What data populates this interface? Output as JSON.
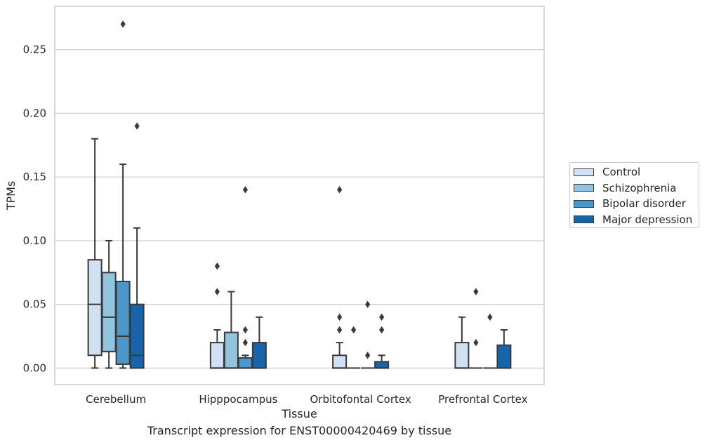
{
  "chart_data": {
    "type": "boxplot",
    "title": "",
    "xlabel": "Tissue",
    "ylabel": "TPMs",
    "caption": "Transcript expression for ENST00000420469 by tissue",
    "categories": [
      "Cerebellum",
      "Hipppocampus",
      "Orbitofontal Cortex",
      "Prefrontal Cortex"
    ],
    "ylim": [
      -0.013,
      0.284
    ],
    "yticks": [
      0.0,
      0.05,
      0.1,
      0.15,
      0.2,
      0.25
    ],
    "ytick_labels": [
      "0.00",
      "0.05",
      "0.10",
      "0.15",
      "0.20",
      "0.25"
    ],
    "grid": true,
    "legend_position": "right",
    "series": [
      {
        "name": "Control",
        "color": "#cfe1f2",
        "boxes": [
          {
            "whisker_low": 0.0,
            "q1": 0.01,
            "median": 0.05,
            "q3": 0.085,
            "whisker_high": 0.18,
            "outliers": []
          },
          {
            "whisker_low": 0.0,
            "q1": 0.0,
            "median": 0.0,
            "q3": 0.02,
            "whisker_high": 0.03,
            "outliers": [
              0.06,
              0.08
            ]
          },
          {
            "whisker_low": 0.0,
            "q1": 0.0,
            "median": 0.0,
            "q3": 0.01,
            "whisker_high": 0.02,
            "outliers": [
              0.03,
              0.04,
              0.14
            ]
          },
          {
            "whisker_low": 0.0,
            "q1": 0.0,
            "median": 0.0,
            "q3": 0.02,
            "whisker_high": 0.04,
            "outliers": []
          }
        ]
      },
      {
        "name": "Schizophrenia",
        "color": "#93c4de",
        "boxes": [
          {
            "whisker_low": 0.0,
            "q1": 0.013,
            "median": 0.04,
            "q3": 0.075,
            "whisker_high": 0.1,
            "outliers": []
          },
          {
            "whisker_low": 0.0,
            "q1": 0.0,
            "median": 0.0,
            "q3": 0.028,
            "whisker_high": 0.06,
            "outliers": []
          },
          {
            "whisker_low": 0.0,
            "q1": 0.0,
            "median": 0.0,
            "q3": 0.0,
            "whisker_high": 0.0,
            "outliers": [
              0.03
            ]
          },
          {
            "whisker_low": 0.0,
            "q1": 0.0,
            "median": 0.0,
            "q3": 0.0,
            "whisker_high": 0.0,
            "outliers": [
              0.02,
              0.06
            ]
          }
        ]
      },
      {
        "name": "Bipolar disorder",
        "color": "#4a98c9",
        "boxes": [
          {
            "whisker_low": 0.0,
            "q1": 0.003,
            "median": 0.025,
            "q3": 0.068,
            "whisker_high": 0.16,
            "outliers": [
              0.27
            ]
          },
          {
            "whisker_low": 0.0,
            "q1": 0.0,
            "median": 0.0,
            "q3": 0.008,
            "whisker_high": 0.01,
            "outliers": [
              0.02,
              0.03,
              0.14
            ]
          },
          {
            "whisker_low": 0.0,
            "q1": 0.0,
            "median": 0.0,
            "q3": 0.0,
            "whisker_high": 0.0,
            "outliers": [
              0.01,
              0.05
            ]
          },
          {
            "whisker_low": 0.0,
            "q1": 0.0,
            "median": 0.0,
            "q3": 0.0,
            "whisker_high": 0.0,
            "outliers": [
              0.04
            ]
          }
        ]
      },
      {
        "name": "Major depression",
        "color": "#1764ab",
        "boxes": [
          {
            "whisker_low": 0.0,
            "q1": 0.0,
            "median": 0.01,
            "q3": 0.05,
            "whisker_high": 0.11,
            "outliers": [
              0.19
            ]
          },
          {
            "whisker_low": 0.0,
            "q1": 0.0,
            "median": 0.0,
            "q3": 0.02,
            "whisker_high": 0.04,
            "outliers": []
          },
          {
            "whisker_low": 0.0,
            "q1": 0.0,
            "median": 0.0,
            "q3": 0.005,
            "whisker_high": 0.01,
            "outliers": [
              0.03,
              0.04
            ]
          },
          {
            "whisker_low": 0.0,
            "q1": 0.0,
            "median": 0.0,
            "q3": 0.018,
            "whisker_high": 0.03,
            "outliers": []
          }
        ]
      }
    ]
  }
}
